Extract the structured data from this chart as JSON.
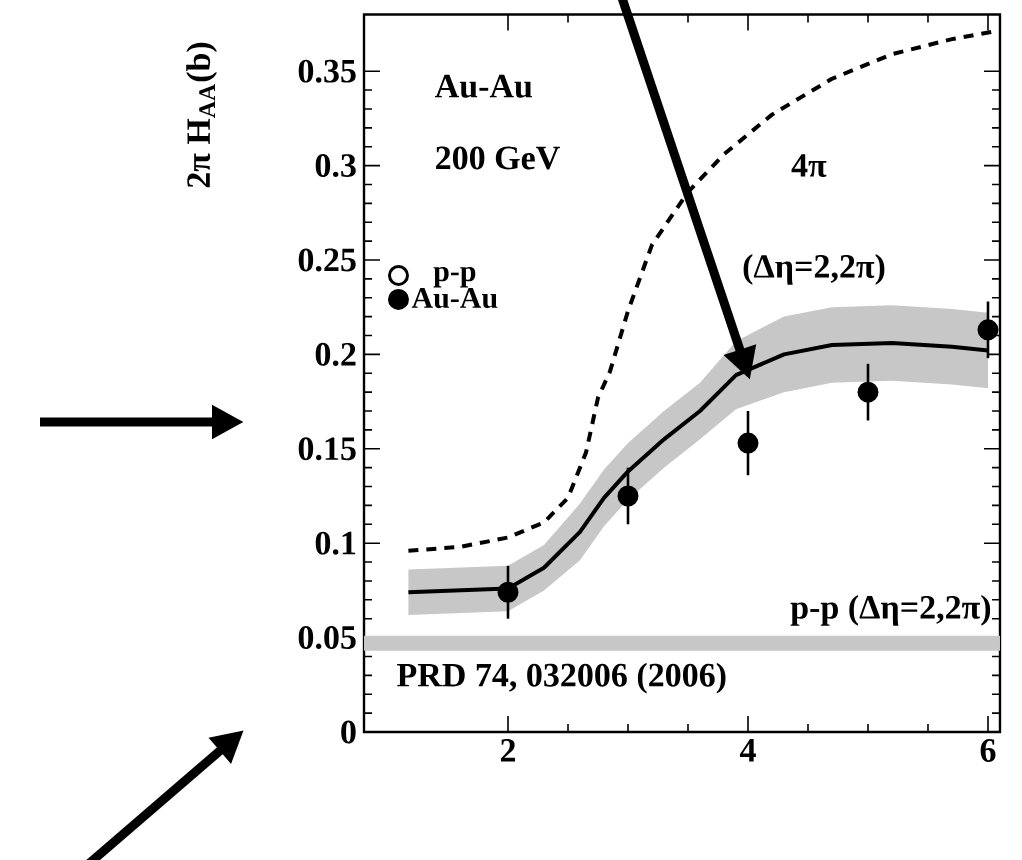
{
  "chart_data": {
    "type": "line",
    "ylabel": "2π H$_{AA}$(b)",
    "xlim": [
      0.8,
      6.1
    ],
    "ylim": [
      0,
      0.38
    ],
    "xticks": [
      2,
      4,
      6
    ],
    "yticks": [
      0,
      0.05,
      0.1,
      0.15,
      0.2,
      0.25,
      0.3,
      0.35
    ],
    "legend": "top left",
    "annotations": [
      "Au-Au",
      "200 GeV",
      "PRD 74, 032006 (2006)"
    ],
    "bands": [
      {
        "axis": "y",
        "from": 0.043,
        "to": 0.051,
        "label": "p-p (Δη=2,2π)",
        "color": "#c7c7c7"
      }
    ],
    "series": [
      {
        "name": "4π",
        "line_style": "dashed",
        "marker": "none",
        "color": "#000000",
        "x": [
          1.17,
          1.6,
          2.0,
          2.3,
          2.5,
          2.65,
          2.75,
          2.85,
          3.0,
          3.2,
          3.5,
          3.8,
          4.2,
          4.7,
          5.2,
          5.7,
          6.05
        ],
        "values": [
          0.096,
          0.098,
          0.103,
          0.111,
          0.124,
          0.148,
          0.177,
          0.191,
          0.223,
          0.258,
          0.286,
          0.306,
          0.327,
          0.346,
          0.359,
          0.367,
          0.371
        ]
      },
      {
        "name": "(Δη=2,2π)",
        "line_style": "solid",
        "marker": "none",
        "color": "#000000",
        "x": [
          1.17,
          2.0,
          2.3,
          2.6,
          2.8,
          3.0,
          3.3,
          3.6,
          3.9,
          4.3,
          4.7,
          5.2,
          5.7,
          6.0
        ],
        "values": [
          0.074,
          0.076,
          0.087,
          0.106,
          0.124,
          0.138,
          0.155,
          0.17,
          0.189,
          0.2,
          0.205,
          0.206,
          0.204,
          0.202
        ],
        "lower": [
          0.062,
          0.064,
          0.075,
          0.091,
          0.109,
          0.123,
          0.14,
          0.155,
          0.171,
          0.18,
          0.185,
          0.186,
          0.184,
          0.182
        ],
        "upper": [
          0.086,
          0.088,
          0.099,
          0.121,
          0.139,
          0.153,
          0.17,
          0.185,
          0.207,
          0.22,
          0.225,
          0.226,
          0.224,
          0.222
        ]
      },
      {
        "name": "p-p",
        "type": "scatter",
        "marker": "circle",
        "color": "#ffffff"
      },
      {
        "name": "Au-Au",
        "type": "scatter",
        "marker": "circle",
        "color": "#000000",
        "x": [
          2,
          3,
          4,
          5,
          6
        ],
        "values": [
          0.074,
          0.125,
          0.153,
          0.18,
          0.213
        ],
        "errors": [
          0.014,
          0.015,
          0.017,
          0.015,
          0.015
        ]
      }
    ]
  }
}
